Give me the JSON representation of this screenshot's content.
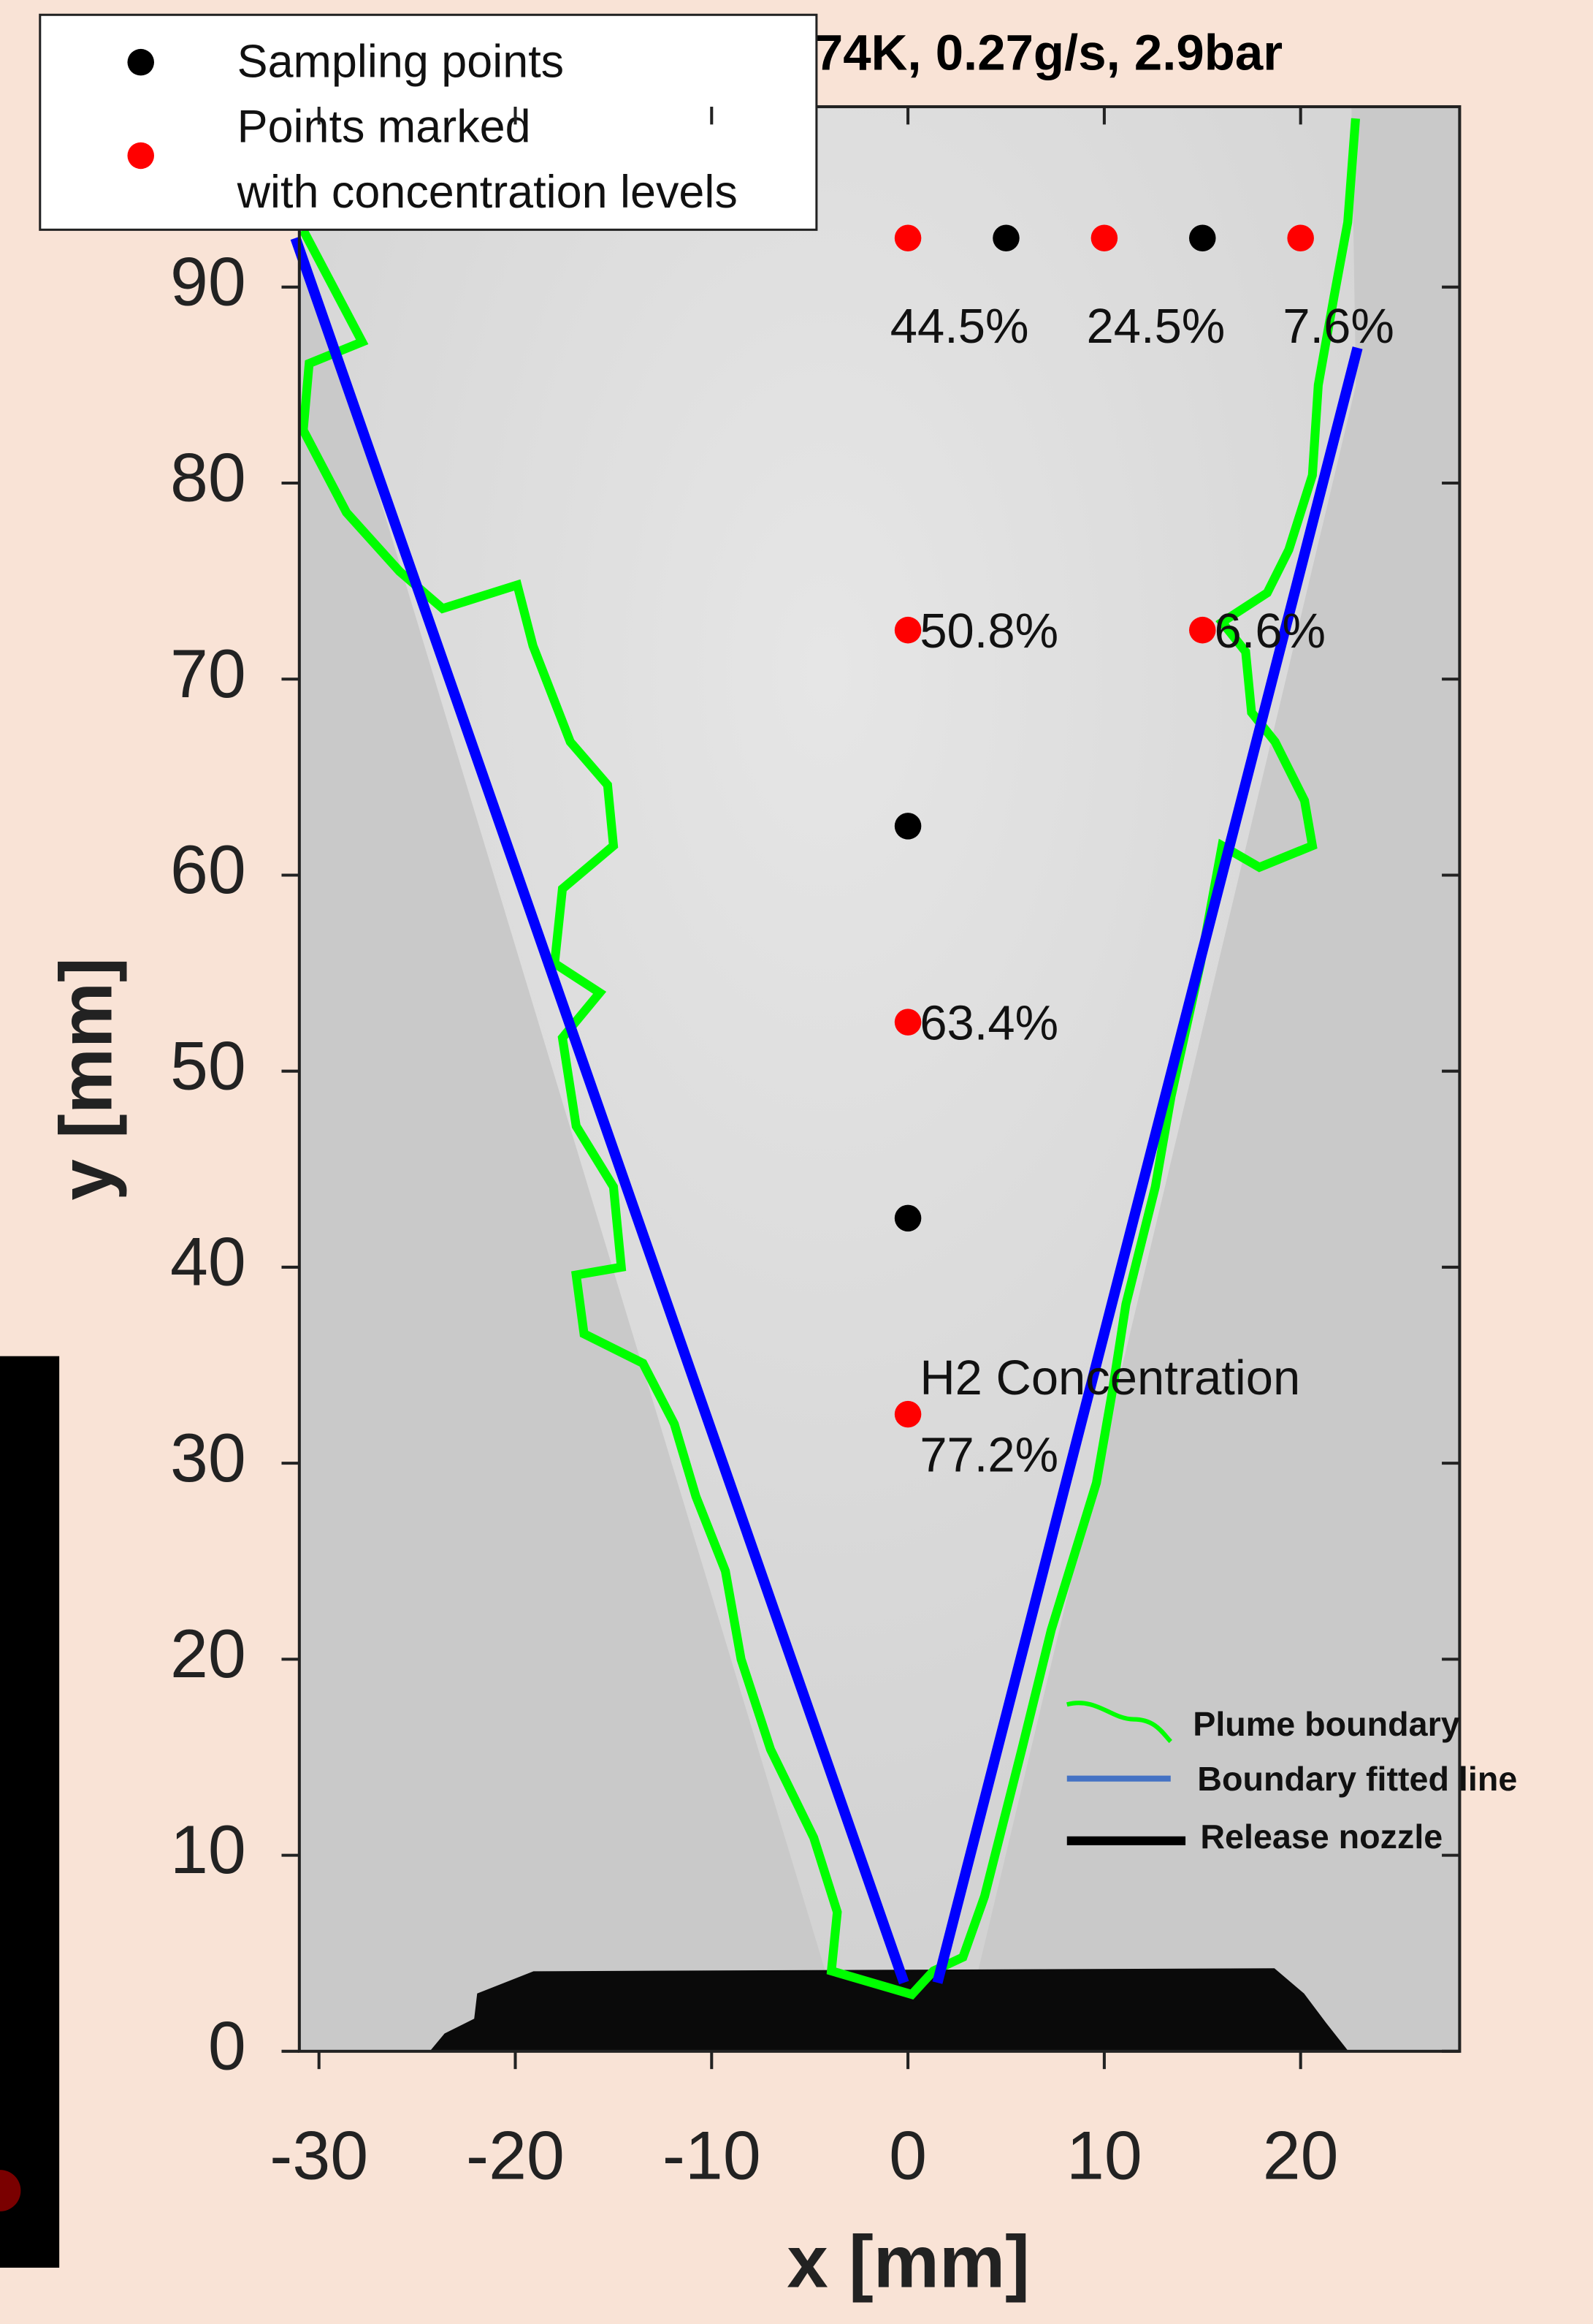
{
  "chart_data": {
    "type": "scatter",
    "title": "74K, 0.27g/s, 2.9bar",
    "x_label": "x [mm]",
    "y_label": "y [mm]",
    "xlim": [
      -31,
      28.1
    ],
    "ylim": [
      0,
      99.2
    ],
    "xticks": [
      -30,
      -20,
      -10,
      0,
      10,
      20
    ],
    "yticks": [
      0,
      10,
      20,
      30,
      40,
      50,
      60,
      70,
      80,
      90
    ],
    "series": [
      {
        "name": "Sampling points",
        "color": "#000000",
        "x": [
          5,
          15,
          0,
          0
        ],
        "values": [
          92.5,
          92.5,
          62.5,
          42.5
        ]
      },
      {
        "name": "Points marked\nwith concentration levels",
        "color": "#ff0000",
        "x": [
          0,
          10,
          20,
          0,
          15,
          0,
          0
        ],
        "values": [
          92.5,
          92.5,
          92.5,
          72.5,
          72.5,
          52.5,
          32.5
        ],
        "point_labels": [
          "44.5%",
          "24.5%",
          "7.6%",
          "50.8%",
          "6.6%",
          "63.4%",
          "77.2%"
        ]
      }
    ],
    "annotation": "H2 Concentration",
    "plume": {
      "name": "Plume boundary",
      "color": "#00ff00",
      "x": [
        -30.8,
        -27.8,
        -30.5,
        -30.8,
        -28.6,
        -25.9,
        -23.7,
        -19.9,
        -19.1,
        -17.2,
        -15.3,
        -15.0,
        -17.6,
        -18.0,
        -15.7,
        -17.6,
        -16.9,
        -15.0,
        -14.6,
        -16.9,
        -16.5,
        -13.5,
        -11.9,
        -10.8,
        -9.3,
        -8.5,
        -7.0,
        -4.8,
        -3.6,
        -3.9,
        0.2,
        1.3,
        2.8,
        3.9,
        5.8,
        7.3,
        9.6,
        10.4,
        11.1,
        12.6,
        13.4,
        14.9,
        16.0,
        17.9,
        20.6,
        20.2,
        18.7,
        17.5,
        17.2,
        16.0,
        18.3,
        19.4,
        20.6,
        20.9,
        21.7,
        22.4,
        22.8
      ],
      "values": [
        92.9,
        87.2,
        86.1,
        82.7,
        78.5,
        75.5,
        73.6,
        74.8,
        71.7,
        66.8,
        64.6,
        61.5,
        59.3,
        55.5,
        54.0,
        51.7,
        47.2,
        44.1,
        40.0,
        39.6,
        36.6,
        35.1,
        32.0,
        28.3,
        24.5,
        20.0,
        15.4,
        10.9,
        7.1,
        4.1,
        2.9,
        4.1,
        4.8,
        7.9,
        15.4,
        21.5,
        29.0,
        33.6,
        38.1,
        44.1,
        48.7,
        55.5,
        61.5,
        60.4,
        61.5,
        63.8,
        66.8,
        68.3,
        71.4,
        72.9,
        74.4,
        76.6,
        80.4,
        85.0,
        89.5,
        93.3,
        98.6
      ]
    },
    "fitted": {
      "name": "Boundary fitted line",
      "color": "#0000ff",
      "legend_color": "#4472c4",
      "lines": [
        {
          "x": [
            -0.2,
            -31.2
          ],
          "values": [
            3.5,
            92.5
          ]
        },
        {
          "x": [
            1.5,
            22.9
          ],
          "values": [
            3.5,
            86.9
          ]
        }
      ]
    },
    "nozzle": {
      "name": "Release nozzle",
      "color": "#000000"
    }
  }
}
